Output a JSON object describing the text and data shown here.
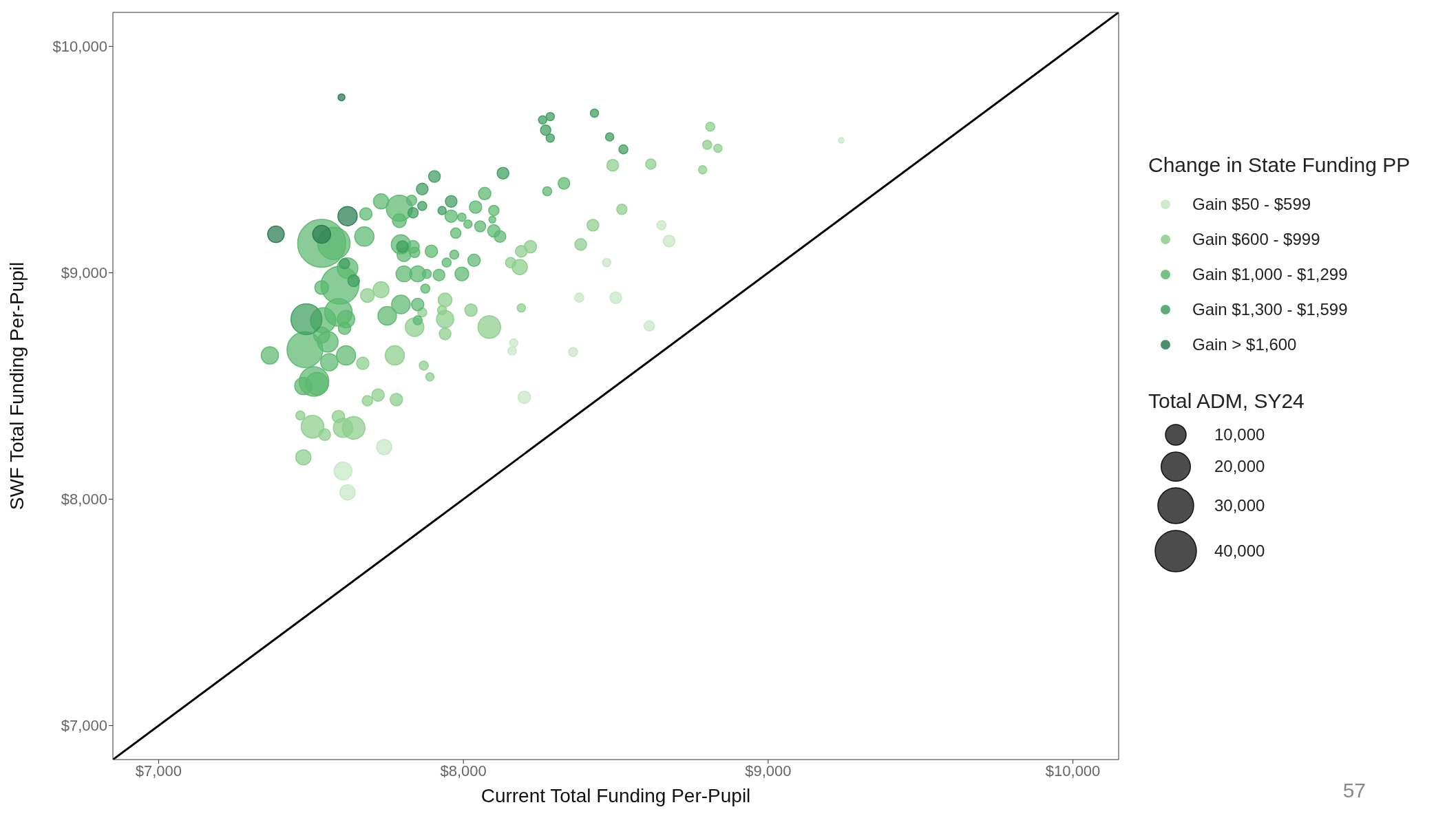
{
  "chart_data": {
    "type": "bubble",
    "xlabel": "Current Total Funding Per-Pupil",
    "ylabel": "SWF Total Funding Per-Pupil",
    "legend_title": "Change in State Funding PP",
    "annotations": [
      "Total ADM, SY24",
      "57"
    ],
    "legend": "right",
    "xlim": [
      6850,
      10150
    ],
    "ylim": [
      6850,
      10150
    ],
    "xticks": [
      {
        "value": 7000,
        "label": "$7,000"
      },
      {
        "value": 8000,
        "label": "$8,000"
      },
      {
        "value": 9000,
        "label": "$9,000"
      },
      {
        "value": 10000,
        "label": "$10,000"
      }
    ],
    "yticks": [
      {
        "value": 7000,
        "label": "$7,000"
      },
      {
        "value": 8000,
        "label": "$8,000"
      },
      {
        "value": 9000,
        "label": "$9,000"
      },
      {
        "value": 10000,
        "label": "$10,000"
      }
    ],
    "size_legend": [
      {
        "value": 10000,
        "label": "10,000"
      },
      {
        "value": 20000,
        "label": "20,000"
      },
      {
        "value": 30000,
        "label": "30,000"
      },
      {
        "value": 40000,
        "label": "40,000"
      }
    ],
    "series": [
      {
        "type": "line",
        "color": "#000000",
        "x": [
          6850,
          10150
        ],
        "values": [
          6850,
          10150
        ]
      },
      {
        "name": "Gain $50 - $599",
        "color": "#c6e8c3",
        "x": [
          9240,
          8650,
          8675,
          8470,
          8380,
          8500,
          8610,
          8360,
          8165,
          8160,
          8200,
          7740,
          7605,
          7620
        ],
        "values": [
          9585,
          9210,
          9140,
          9045,
          8890,
          8890,
          8765,
          8650,
          8690,
          8655,
          8450,
          8230,
          8125,
          8030
        ],
        "sizes": [
          700,
          1900,
          3200,
          1600,
          1900,
          3200,
          2500,
          1900,
          1600,
          1600,
          3600,
          5400,
          7500,
          5400
        ]
      },
      {
        "name": "Gain $600 - $999",
        "color": "#8ccf8c",
        "x": [
          8490,
          8615,
          8810,
          8800,
          8835,
          8785,
          8520,
          8425,
          8385,
          8220,
          8190,
          8155,
          8185,
          7730,
          7685,
          7670,
          7865,
          7840,
          7940,
          7930,
          7940,
          7940,
          8025,
          8085,
          8190,
          7775,
          7870,
          7890,
          7685,
          7720,
          7780,
          7465,
          7505,
          7545,
          7590,
          7605,
          7640,
          7475
        ],
        "values": [
          9475,
          9480,
          9645,
          9565,
          9550,
          9455,
          9280,
          9210,
          9125,
          9115,
          9095,
          9045,
          9025,
          8925,
          8900,
          8600,
          8825,
          8760,
          8880,
          8835,
          8795,
          8730,
          8835,
          8760,
          8845,
          8635,
          8590,
          8540,
          8435,
          8460,
          8440,
          8370,
          8320,
          8285,
          8365,
          8315,
          8315,
          8185
        ],
        "sizes": [
          3200,
          2500,
          1900,
          1900,
          1600,
          1600,
          2500,
          3200,
          3200,
          3600,
          3200,
          2500,
          5400,
          5900,
          4400,
          3600,
          1900,
          8100,
          4400,
          1900,
          7000,
          3200,
          3600,
          12000,
          1600,
          8700,
          1900,
          1600,
          2500,
          3600,
          3600,
          1900,
          12000,
          3200,
          3600,
          8700,
          12000,
          5400
        ]
      },
      {
        "name": "Gain $1,000 - $1,299",
        "color": "#5cb870",
        "x": [
          8330,
          8275,
          8070,
          8040,
          8100,
          8095,
          8100,
          8120,
          8055,
          8015,
          7995,
          7960,
          7975,
          7730,
          7830,
          7790,
          7790,
          7680,
          7675,
          7535,
          7575,
          7595,
          7620,
          7535,
          7795,
          7835,
          7805,
          7840,
          7895,
          7970,
          7945,
          8035,
          7995,
          7920,
          7875,
          7805,
          7850,
          7880,
          7365,
          7540,
          7590,
          7615,
          7610,
          7555,
          7535,
          7560,
          7615,
          7480,
          7510,
          7475,
          7520,
          7750,
          7795,
          7850,
          7850
        ],
        "values": [
          9395,
          9360,
          9350,
          9290,
          9275,
          9235,
          9185,
          9160,
          9205,
          9215,
          9245,
          9250,
          9175,
          9315,
          9320,
          9285,
          9230,
          9260,
          9160,
          9130,
          9130,
          8945,
          9020,
          8935,
          9125,
          9115,
          9080,
          9090,
          9095,
          9080,
          9045,
          9055,
          8995,
          8990,
          8930,
          8995,
          8995,
          8995,
          8635,
          8790,
          8825,
          8795,
          8755,
          8695,
          8725,
          8605,
          8635,
          8660,
          8520,
          8500,
          8510,
          8810,
          8860,
          8860,
          8790
        ],
        "sizes": [
          3200,
          1900,
          3600,
          3600,
          2500,
          1100,
          3600,
          3200,
          2800,
          1600,
          1600,
          3600,
          2500,
          5400,
          2500,
          16000,
          4400,
          3600,
          8700,
          54000,
          24500,
          33600,
          10000,
          4400,
          8700,
          3600,
          4400,
          2500,
          3600,
          1900,
          1900,
          3600,
          4400,
          3200,
          1900,
          5900,
          5900,
          1900,
          7000,
          15000,
          17800,
          7000,
          3600,
          10000,
          6000,
          7000,
          8700,
          30000,
          20500,
          7000,
          12000,
          8100,
          8100,
          3600,
          1900
        ]
      },
      {
        "name": "Gain $1,300 - $1,599",
        "color": "#3f9e5e",
        "x": [
          8260,
          8285,
          8270,
          8285,
          8430,
          8480,
          8525,
          7905,
          8130,
          7865,
          7865,
          7960,
          7930,
          7835,
          7610,
          7640,
          7800,
          7485
        ],
        "values": [
          9675,
          9690,
          9630,
          9595,
          9705,
          9600,
          9545,
          9425,
          9440,
          9370,
          9295,
          9315,
          9275,
          9265,
          9040,
          8965,
          9115,
          8795
        ],
        "sizes": [
          1600,
          1600,
          2500,
          1600,
          1600,
          1600,
          1900,
          3200,
          3200,
          3200,
          1900,
          3200,
          1600,
          2500,
          2500,
          3200,
          3200,
          22500
        ]
      },
      {
        "name": "Gain > $1,600",
        "color": "#2a7a50",
        "x": [
          7600,
          7620,
          7385,
          7535
        ],
        "values": [
          9775,
          9250,
          9170,
          9170
        ],
        "sizes": [
          1100,
          8700,
          6400,
          7500
        ]
      }
    ]
  }
}
